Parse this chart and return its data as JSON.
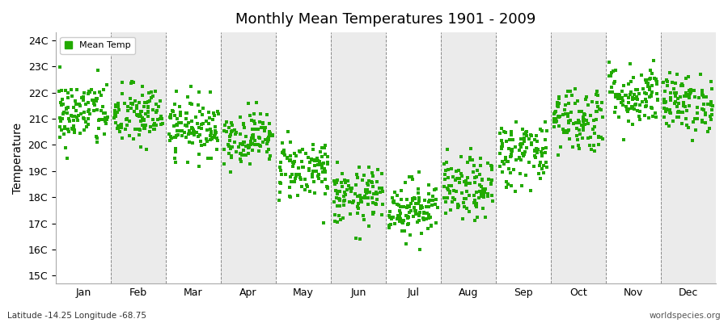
{
  "title": "Monthly Mean Temperatures 1901 - 2009",
  "ylabel": "Temperature",
  "background_color": "#ffffff",
  "band_colors": [
    "#ffffff",
    "#ebebeb"
  ],
  "marker_color": "#22aa00",
  "marker_size": 3,
  "years": 109,
  "monthly_means": [
    21.2,
    21.1,
    20.7,
    20.3,
    19.1,
    18.0,
    17.6,
    18.3,
    19.7,
    21.0,
    21.9,
    21.6
  ],
  "monthly_stds": [
    0.65,
    0.6,
    0.55,
    0.5,
    0.6,
    0.55,
    0.55,
    0.6,
    0.65,
    0.65,
    0.6,
    0.55
  ],
  "month_names": [
    "Jan",
    "Feb",
    "Mar",
    "Apr",
    "May",
    "Jun",
    "Jul",
    "Aug",
    "Sep",
    "Oct",
    "Nov",
    "Dec"
  ],
  "yticks": [
    15,
    16,
    17,
    18,
    19,
    20,
    21,
    22,
    23,
    24
  ],
  "ylim": [
    14.7,
    24.3
  ],
  "xlim": [
    0,
    12
  ],
  "xlabel_bottom_left": "Latitude -14.25 Longitude -68.75",
  "xlabel_bottom_right": "worldspecies.org",
  "legend_label": "Mean Temp",
  "seed": 42,
  "dashed_line_color": "#888888",
  "spine_color": "#aaaaaa"
}
